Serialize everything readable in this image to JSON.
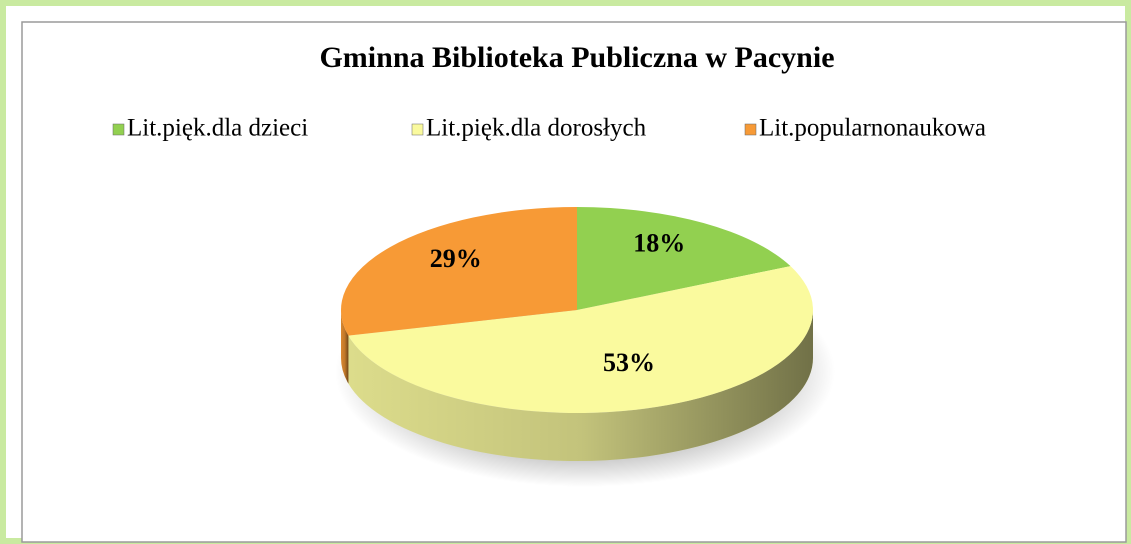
{
  "chart_data": {
    "type": "pie",
    "title": "Gminna Biblioteka Publiczna w Pacynie",
    "categories": [
      "Lit.pięk.dla dzieci",
      "Lit.pięk.dla dorosłych",
      "Lit.popularnonaukowa"
    ],
    "values": [
      18,
      53,
      29
    ],
    "value_labels": [
      "18%",
      "53%",
      "29%"
    ],
    "colors": [
      "#92d050",
      "#fafa9e",
      "#f79a36"
    ],
    "legend": "top"
  }
}
